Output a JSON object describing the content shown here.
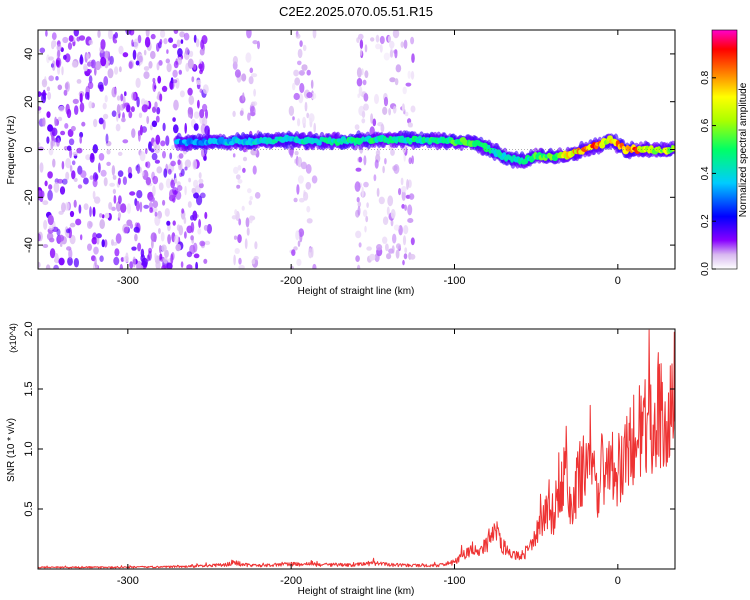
{
  "title": "C2E2.2025.070.05.51.R15",
  "chart_data": [
    {
      "type": "heatmap",
      "xlabel": "Height of straight line (km)",
      "ylabel": "Frequency (Hz)",
      "xlim": [
        -355,
        35
      ],
      "ylim": [
        -50,
        50
      ],
      "x_ticks": [
        -300,
        -200,
        -100,
        0
      ],
      "y_ticks": [
        -40,
        -20,
        0,
        20,
        40
      ],
      "x_tick_labels": [
        "-300",
        "-200",
        "-100",
        "0"
      ],
      "y_tick_labels": [
        "-40",
        "-20",
        "0",
        "20",
        "40"
      ],
      "colorbar": {
        "label": "Normalized spectral amplitude",
        "range": [
          0,
          1
        ],
        "ticks": [
          "0.0",
          "0.2",
          "0.4",
          "0.6",
          "0.8"
        ],
        "tick_values": [
          0.0,
          0.2,
          0.4,
          0.6,
          0.8
        ],
        "colormap": "rainbow (white-purple-blue-cyan-green-yellow-red-magenta)"
      },
      "ridge": {
        "description": "bright band tracking the signal frequency",
        "x": [
          -270,
          -250,
          -220,
          -200,
          -180,
          -150,
          -120,
          -100,
          -90,
          -80,
          -70,
          -60,
          -50,
          -40,
          -30,
          -20,
          -10,
          -5,
          0,
          5,
          10,
          20,
          30,
          35
        ],
        "y": [
          3,
          3,
          3.5,
          4,
          3.5,
          4,
          4,
          3.5,
          3,
          1,
          -3,
          -5,
          -3,
          -3,
          -2,
          0,
          2,
          4,
          2,
          0,
          0,
          0,
          0,
          0
        ],
        "amplitude": [
          0.35,
          0.38,
          0.45,
          0.42,
          0.5,
          0.5,
          0.5,
          0.55,
          0.55,
          0.5,
          0.45,
          0.45,
          0.55,
          0.6,
          0.75,
          0.9,
          0.85,
          0.7,
          0.9,
          0.95,
          0.9,
          0.75,
          0.7,
          0.7
        ]
      },
      "noise_regions_x": [
        [
          -355,
          -250
        ],
        [
          -235,
          -220
        ],
        [
          -200,
          -185
        ],
        [
          -160,
          -125
        ]
      ]
    },
    {
      "type": "line",
      "xlabel": "Height of straight line (km)",
      "ylabel": "SNR (10 * v/v)",
      "y_multiplier": "(x10^4)",
      "xlim": [
        -355,
        35
      ],
      "ylim": [
        0,
        2.0
      ],
      "x_ticks": [
        -300,
        -200,
        -100,
        0
      ],
      "x_tick_labels": [
        "-300",
        "-200",
        "-100",
        "0"
      ],
      "y_ticks": [
        0.5,
        1.0,
        1.5,
        2.0
      ],
      "y_tick_labels": [
        "0.5",
        "1.0",
        "1.5",
        "2.0"
      ],
      "color": "#ee3333",
      "series": [
        {
          "x": [
            -355,
            -300,
            -260,
            -240,
            -235,
            -230,
            -220,
            -200,
            -180,
            -160,
            -150,
            -140,
            -120,
            -110,
            -105,
            -100,
            -95,
            -90,
            -85,
            -80,
            -75,
            -70,
            -65,
            -60,
            -55,
            -50,
            -45,
            -42,
            -40,
            -35,
            -32,
            -30,
            -28,
            -25,
            -20,
            -15,
            -12,
            -10,
            -5,
            0,
            5,
            10,
            15,
            20,
            25,
            30,
            35
          ],
          "y": [
            0.02,
            0.02,
            0.03,
            0.05,
            0.09,
            0.05,
            0.04,
            0.06,
            0.05,
            0.05,
            0.07,
            0.05,
            0.04,
            0.04,
            0.06,
            0.08,
            0.15,
            0.22,
            0.18,
            0.3,
            0.45,
            0.25,
            0.18,
            0.14,
            0.2,
            0.4,
            0.6,
            0.75,
            0.55,
            0.9,
            1.3,
            0.8,
            0.6,
            1.0,
            1.25,
            1.05,
            0.75,
            1.15,
            1.3,
            1.05,
            1.35,
            1.5,
            1.65,
            1.7,
            1.8,
            1.9,
            1.95
          ]
        }
      ]
    }
  ],
  "colors": {
    "line": "#ee3333",
    "axis": "#000000",
    "grid": "#999999"
  }
}
